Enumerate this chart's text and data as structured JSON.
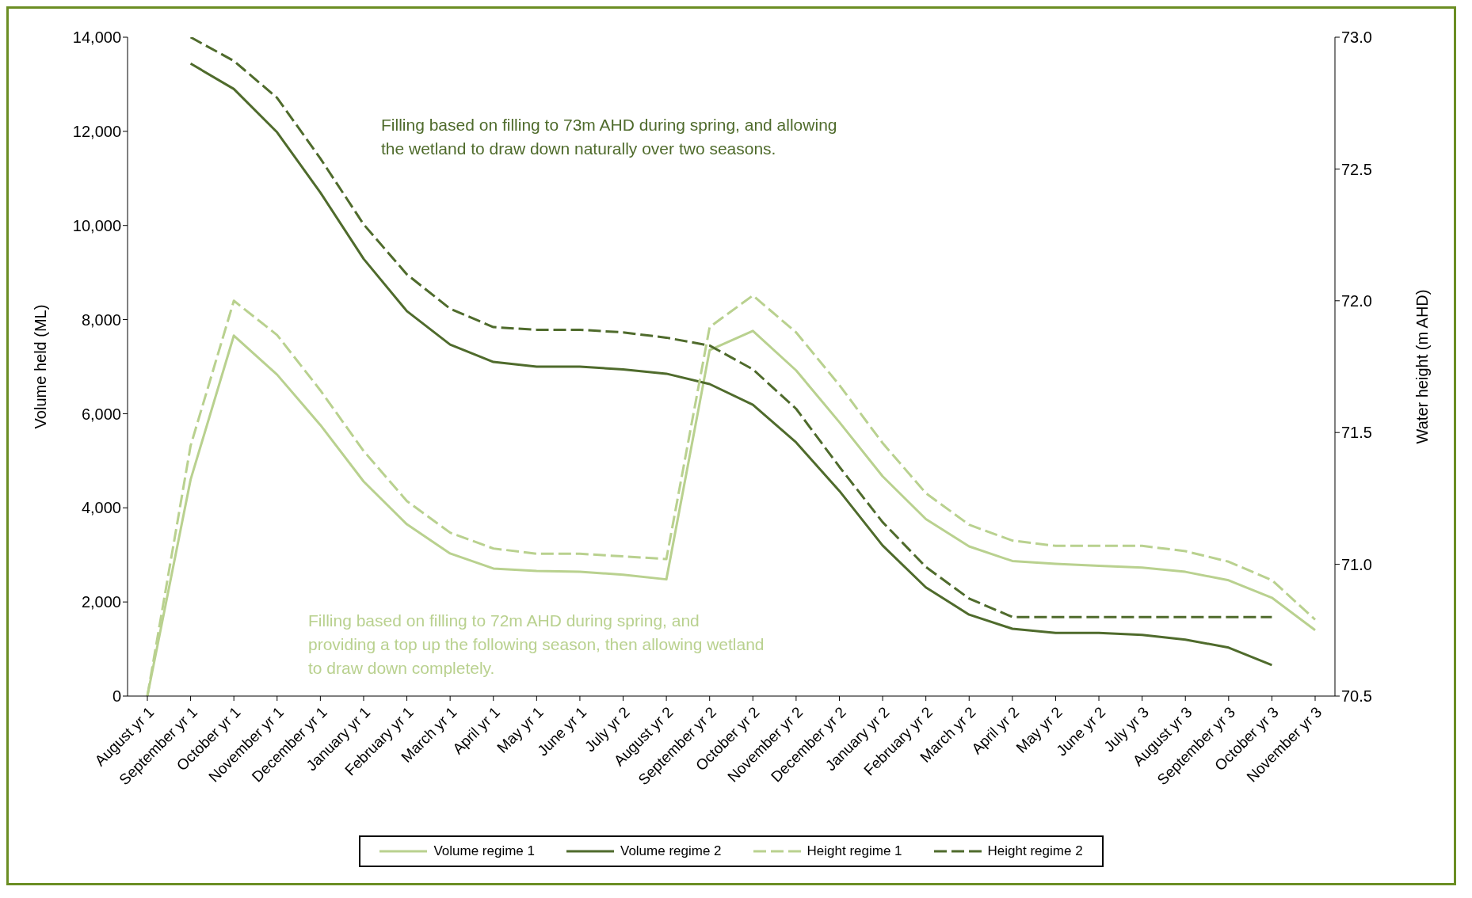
{
  "chart_data": {
    "type": "line",
    "categories": [
      "August yr 1",
      "September yr 1",
      "October yr 1",
      "November yr 1",
      "December yr 1",
      "January yr 1",
      "February yr 1",
      "March yr 1",
      "April yr 1",
      "May yr 1",
      "June yr 1",
      "July yr 2",
      "August yr 2",
      "September yr 2",
      "October yr 2",
      "November yr 2",
      "December yr 2",
      "January yr 2",
      "February yr 2",
      "March yr 2",
      "April yr 2",
      "May yr 2",
      "June yr 2",
      "July yr 3",
      "August yr 3",
      "September yr 3",
      "October yr 3",
      "November yr 3"
    ],
    "ylabel": "Volume held (ML)",
    "y2label": "Water height (m AHD)",
    "ylim": [
      0,
      14000
    ],
    "yticks": [
      0,
      {
        "value": 2000,
        "label": "2,000"
      },
      {
        "value": 4000,
        "label": "4,000"
      },
      {
        "value": 6000,
        "label": "6,000"
      },
      {
        "value": 8000,
        "label": "8,000"
      },
      {
        "value": 10000,
        "label": "10,000"
      },
      {
        "value": 12000,
        "label": "12,000"
      },
      {
        "value": 14000,
        "label": "14,000"
      }
    ],
    "y2lim": [
      70.5,
      73
    ],
    "y2ticks": [
      {
        "value": 70.5,
        "label": "70.5"
      },
      {
        "value": 71,
        "label": "71.0"
      },
      {
        "value": 71.5,
        "label": "71.5"
      },
      {
        "value": 72,
        "label": "72.0"
      },
      {
        "value": 72.5,
        "label": "72.5"
      },
      {
        "value": 73,
        "label": "73.0"
      }
    ],
    "grid": false,
    "legend": "bottom",
    "marker": "none",
    "annotations": [
      "Filling based on filling to 73m AHD during spring, and allowing the  wetland to draw down naturally over two seasons.",
      "Filling based on filling to 72m AHD during spring, and providing a top up the following season, then allowing wetland to draw down completely."
    ],
    "series": [
      {
        "name": "Volume regime 1",
        "color": "#b9d18f",
        "line_style": "solid",
        "values": [
          0,
          4600,
          7660,
          6830,
          5760,
          4560,
          3650,
          3030,
          2710,
          2660,
          2640,
          2580,
          2480,
          7350,
          7760,
          6920,
          5820,
          4670,
          3760,
          3180,
          2870,
          2810,
          2770,
          2730,
          2640,
          2460,
          2090,
          1400
        ]
      },
      {
        "name": "Volume regime 2",
        "color": "#4f6b2c",
        "line_style": "solid",
        "values": [
          null,
          13440,
          12900,
          11980,
          10700,
          9290,
          8180,
          7470,
          7100,
          7000,
          7000,
          6940,
          6850,
          6630,
          6190,
          5390,
          4360,
          3200,
          2310,
          1730,
          1430,
          1340,
          1340,
          1300,
          1200,
          1030,
          660,
          null
        ]
      },
      {
        "name": "Height regime 1",
        "color": "#b9d18f",
        "line_style": "dashed",
        "axis": "y2",
        "values": [
          70.5,
          71.45,
          72.0,
          71.87,
          71.66,
          71.43,
          71.24,
          71.12,
          71.06,
          71.04,
          71.04,
          71.03,
          71.02,
          71.9,
          72.02,
          71.88,
          71.68,
          71.46,
          71.27,
          71.15,
          71.09,
          71.07,
          71.07,
          71.07,
          71.05,
          71.01,
          70.94,
          70.79
        ]
      },
      {
        "name": "Height regime 2",
        "color": "#4f6b2c",
        "line_style": "dashed",
        "axis": "y2",
        "values": [
          null,
          73.0,
          72.91,
          72.77,
          72.54,
          72.29,
          72.1,
          71.97,
          71.9,
          71.89,
          71.89,
          71.88,
          71.86,
          71.83,
          71.74,
          71.59,
          71.37,
          71.16,
          70.99,
          70.87,
          70.8,
          70.8,
          70.8,
          70.8,
          70.8,
          70.8,
          70.8,
          null
        ]
      }
    ]
  }
}
